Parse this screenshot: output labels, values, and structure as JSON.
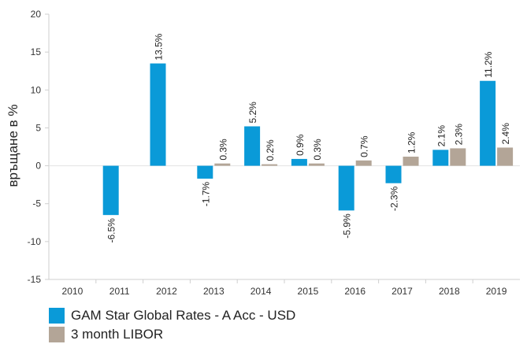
{
  "chart_data": {
    "type": "bar",
    "categories": [
      "2010",
      "2011",
      "2012",
      "2013",
      "2014",
      "2015",
      "2016",
      "2017",
      "2018",
      "2019"
    ],
    "series": [
      {
        "name": "GAM Star Global Rates - A Acc - USD",
        "color": "#0a9ad8",
        "values": [
          null,
          -6.5,
          13.5,
          -1.7,
          5.2,
          0.9,
          -5.9,
          -2.3,
          2.1,
          11.2
        ],
        "labels": [
          "",
          "-6.5%",
          "13.5%",
          "-1.7%",
          "5.2%",
          "0.9%",
          "-5.9%",
          "-2.3%",
          "2.1%",
          "11.2%"
        ]
      },
      {
        "name": "3 month LIBOR",
        "color": "#b3a597",
        "values": [
          null,
          null,
          null,
          0.3,
          0.2,
          0.3,
          0.7,
          1.2,
          2.3,
          2.4
        ],
        "labels": [
          "",
          "",
          "",
          "0.3%",
          "0.2%",
          "0.3%",
          "0.7%",
          "1.2%",
          "2.3%",
          "2.4%"
        ]
      }
    ],
    "ylabel": "връщане в %",
    "ylim": [
      -15,
      20
    ],
    "yticks": [
      "-15",
      "-10",
      "-5",
      "0",
      "5",
      "10",
      "15",
      "20"
    ],
    "grid": false,
    "legend_position": "bottom-left"
  }
}
